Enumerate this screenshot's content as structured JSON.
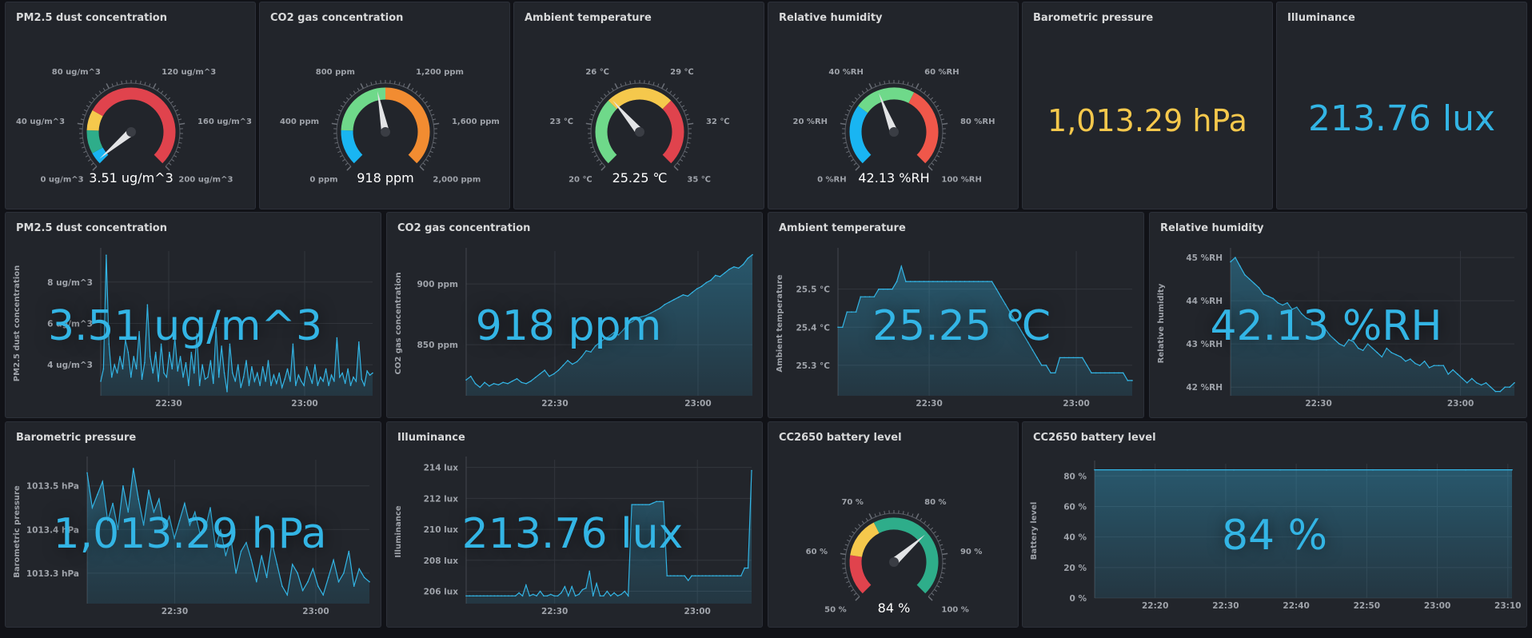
{
  "gauges": [
    {
      "title": "PM2.5 dust concentration",
      "value": 3.51,
      "display": "3.51 ug/m^3",
      "min": 0,
      "max": 200,
      "ticks": [
        {
          "v": 0,
          "label": "0 ug/m^3"
        },
        {
          "v": 40,
          "label": "40 ug/m^3"
        },
        {
          "v": 80,
          "label": "80 ug/m^3"
        },
        {
          "v": 120,
          "label": "120 ug/m^3"
        },
        {
          "v": 160,
          "label": "160 ug/m^3"
        },
        {
          "v": 200,
          "label": "200 ug/m^3"
        }
      ],
      "bands": [
        {
          "from": 0,
          "to": 12,
          "color": "#19b5f2"
        },
        {
          "from": 12,
          "to": 35,
          "color": "#2ead8a"
        },
        {
          "from": 35,
          "to": 55,
          "color": "#f5c84c"
        },
        {
          "from": 55,
          "to": 200,
          "color": "#e0434d"
        }
      ]
    },
    {
      "title": "CO2 gas concentration",
      "value": 918,
      "display": "918 ppm",
      "min": 0,
      "max": 2000,
      "ticks": [
        {
          "v": 0,
          "label": "0 ppm"
        },
        {
          "v": 400,
          "label": "400 ppm"
        },
        {
          "v": 800,
          "label": "800 ppm"
        },
        {
          "v": 1200,
          "label": "1,200 ppm"
        },
        {
          "v": 1600,
          "label": "1,600 ppm"
        },
        {
          "v": 2000,
          "label": "2,000 ppm"
        }
      ],
      "bands": [
        {
          "from": 0,
          "to": 350,
          "color": "#19b5f2"
        },
        {
          "from": 350,
          "to": 1000,
          "color": "#6fd98a"
        },
        {
          "from": 1000,
          "to": 2000,
          "color": "#f28c31"
        }
      ]
    },
    {
      "title": "Ambient temperature",
      "value": 25.25,
      "display": "25.25 ℃",
      "min": 20,
      "max": 35,
      "ticks": [
        {
          "v": 20,
          "label": "20 ℃"
        },
        {
          "v": 23,
          "label": "23 ℃"
        },
        {
          "v": 26,
          "label": "26 ℃"
        },
        {
          "v": 29,
          "label": "29 ℃"
        },
        {
          "v": 32,
          "label": "32 ℃"
        },
        {
          "v": 35,
          "label": "35 ℃"
        }
      ],
      "bands": [
        {
          "from": 20,
          "to": 25,
          "color": "#6fd98a"
        },
        {
          "from": 25,
          "to": 30,
          "color": "#f5c84c"
        },
        {
          "from": 30,
          "to": 35,
          "color": "#e0434d"
        }
      ]
    },
    {
      "title": "Relative humidity",
      "value": 42.13,
      "display": "42.13 %RH",
      "min": 0,
      "max": 100,
      "ticks": [
        {
          "v": 0,
          "label": "0 %RH"
        },
        {
          "v": 20,
          "label": "20 %RH"
        },
        {
          "v": 40,
          "label": "40 %RH"
        },
        {
          "v": 60,
          "label": "60 %RH"
        },
        {
          "v": 80,
          "label": "80 %RH"
        },
        {
          "v": 100,
          "label": "100 %RH"
        }
      ],
      "bands": [
        {
          "from": 0,
          "to": 30,
          "color": "#19b5f2"
        },
        {
          "from": 30,
          "to": 60,
          "color": "#6fd98a"
        },
        {
          "from": 60,
          "to": 100,
          "color": "#f0574a"
        }
      ]
    },
    {
      "title": "CC2650 battery level",
      "value": 84,
      "display": "84 %",
      "min": 50,
      "max": 100,
      "ticks": [
        {
          "v": 50,
          "label": "50 %"
        },
        {
          "v": 60,
          "label": "60 %"
        },
        {
          "v": 70,
          "label": "70 %"
        },
        {
          "v": 80,
          "label": "80 %"
        },
        {
          "v": 90,
          "label": "90 %"
        },
        {
          "v": 100,
          "label": "100 %"
        }
      ],
      "bands": [
        {
          "from": 50,
          "to": 60,
          "color": "#e0434d"
        },
        {
          "from": 60,
          "to": 70,
          "color": "#f5c84c"
        },
        {
          "from": 70,
          "to": 100,
          "color": "#2ead8a"
        }
      ]
    }
  ],
  "stats": [
    {
      "title": "Barometric pressure",
      "display": "1,013.29 hPa",
      "color": "#f5c84c"
    },
    {
      "title": "Illuminance",
      "display": "213.76 lux",
      "color": "#33b5e5"
    }
  ],
  "timeseries": [
    {
      "title": "PM2.5 dust concentration",
      "ylabel": "PM2.5 dust concentration",
      "big": "3.51 ug/m^3",
      "ymin": 2.5,
      "ymax": 9.5,
      "yticks": [
        {
          "v": 4,
          "label": "4 ug/m^3"
        },
        {
          "v": 6,
          "label": "6 ug/m^3"
        },
        {
          "v": 8,
          "label": "8 ug/m^3"
        }
      ],
      "xmin": 0,
      "xmax": 100,
      "xticks": [
        {
          "v": 25,
          "label": "22:30"
        },
        {
          "v": 75,
          "label": "23:00"
        }
      ],
      "values": [
        3.2,
        3.8,
        9.3,
        5.0,
        3.4,
        4.0,
        3.6,
        4.4,
        3.8,
        5.2,
        4.6,
        3.4,
        4.4,
        3.8,
        5.6,
        3.3,
        4.1,
        6.9,
        4.4,
        3.6,
        4.6,
        3.2,
        5.0,
        3.6,
        3.4,
        4.6,
        3.8,
        5.3,
        3.7,
        4.4,
        3.4,
        4.1,
        3.0,
        4.6,
        3.6,
        5.5,
        3.0,
        4.0,
        3.3,
        3.4,
        4.2,
        3.1,
        5.8,
        3.4,
        4.9,
        3.6,
        2.7,
        5.0,
        3.6,
        3.2,
        4.0,
        2.9,
        3.4,
        4.2,
        3.0,
        3.9,
        3.2,
        3.6,
        3.0,
        3.9,
        3.2,
        4.2,
        3.0,
        3.5,
        3.1,
        3.6,
        2.9,
        3.3,
        3.8,
        3.2,
        5.0,
        3.0,
        3.5,
        3.2,
        3.0,
        3.9,
        3.5,
        3.1,
        4.0,
        3.0,
        3.4,
        3.2,
        3.8,
        3.0,
        3.5,
        3.2,
        5.3,
        3.4,
        3.6,
        3.1,
        3.8,
        3.0,
        3.4,
        3.2,
        5.1,
        3.3,
        3.0,
        3.7,
        3.5,
        3.6
      ]
    },
    {
      "title": "CO2 gas concentration",
      "ylabel": "CO2 gas concentration",
      "big": "918 ppm",
      "ymin": 808,
      "ymax": 927,
      "yticks": [
        {
          "v": 850,
          "label": "850 ppm"
        },
        {
          "v": 900,
          "label": "900 ppm"
        }
      ],
      "xmin": 0,
      "xmax": 100,
      "xticks": [
        {
          "v": 31,
          "label": "22:30"
        },
        {
          "v": 81,
          "label": "23:00"
        }
      ],
      "values": [
        821,
        824,
        818,
        815,
        819,
        816,
        818,
        817,
        819,
        818,
        820,
        822,
        819,
        818,
        820,
        823,
        826,
        829,
        824,
        826,
        829,
        833,
        837,
        834,
        836,
        840,
        845,
        844,
        849,
        852,
        855,
        857,
        860,
        858,
        862,
        867,
        869,
        872,
        873,
        874,
        876,
        878,
        880,
        883,
        885,
        887,
        889,
        891,
        890,
        893,
        896,
        898,
        901,
        903,
        907,
        906,
        909,
        912,
        914,
        913,
        916,
        921,
        924
      ]
    },
    {
      "title": "Ambient temperature",
      "ylabel": "Ambient temperature",
      "big": "25.25 ℃",
      "ymin": 25.22,
      "ymax": 25.6,
      "yticks": [
        {
          "v": 25.3,
          "label": "25.3 °C"
        },
        {
          "v": 25.4,
          "label": "25.4 °C"
        },
        {
          "v": 25.5,
          "label": "25.5 °C"
        }
      ],
      "xmin": 0,
      "xmax": 100,
      "xticks": [
        {
          "v": 31,
          "label": "22:30"
        },
        {
          "v": 81,
          "label": "23:00"
        }
      ],
      "values": [
        25.4,
        25.4,
        25.44,
        25.44,
        25.44,
        25.48,
        25.48,
        25.48,
        25.48,
        25.5,
        25.5,
        25.5,
        25.5,
        25.52,
        25.56,
        25.52,
        25.52,
        25.52,
        25.52,
        25.52,
        25.52,
        25.52,
        25.52,
        25.52,
        25.52,
        25.52,
        25.52,
        25.52,
        25.52,
        25.52,
        25.52,
        25.52,
        25.52,
        25.52,
        25.52,
        25.5,
        25.48,
        25.46,
        25.44,
        25.42,
        25.4,
        25.38,
        25.36,
        25.34,
        25.32,
        25.3,
        25.3,
        25.28,
        25.28,
        25.32,
        25.32,
        25.32,
        25.32,
        25.32,
        25.32,
        25.3,
        25.28,
        25.28,
        25.28,
        25.28,
        25.28,
        25.28,
        25.28,
        25.28,
        25.26,
        25.26
      ]
    },
    {
      "title": "Relative humidity",
      "ylabel": "Relative humidity",
      "big": "42.13 %RH",
      "ymin": 41.8,
      "ymax": 45.15,
      "yticks": [
        {
          "v": 42,
          "label": "42 %RH"
        },
        {
          "v": 43,
          "label": "43 %RH"
        },
        {
          "v": 44,
          "label": "44 %RH"
        },
        {
          "v": 45,
          "label": "45 %RH"
        }
      ],
      "xmin": 0,
      "xmax": 100,
      "xticks": [
        {
          "v": 31,
          "label": "22:30"
        },
        {
          "v": 81,
          "label": "23:00"
        }
      ],
      "values": [
        44.9,
        45.0,
        44.8,
        44.6,
        44.5,
        44.4,
        44.3,
        44.15,
        44.1,
        44.05,
        43.95,
        43.9,
        43.95,
        43.8,
        43.85,
        43.7,
        43.6,
        43.55,
        43.45,
        43.4,
        43.35,
        43.2,
        43.1,
        43.0,
        42.95,
        43.1,
        43.05,
        42.9,
        42.85,
        43.0,
        42.9,
        42.8,
        42.7,
        42.9,
        42.8,
        42.75,
        42.7,
        42.6,
        42.65,
        42.55,
        42.5,
        42.6,
        42.45,
        42.5,
        42.5,
        42.5,
        42.3,
        42.4,
        42.3,
        42.2,
        42.1,
        42.2,
        42.1,
        42.05,
        42.1,
        42.0,
        41.9,
        41.9,
        42.0,
        42.0,
        42.1
      ]
    },
    {
      "title": "Barometric pressure",
      "ylabel": "Barometric pressure",
      "big": "1,013.29 hPa",
      "ymin": 1013.23,
      "ymax": 1013.56,
      "yticks": [
        {
          "v": 1013.3,
          "label": "1013.3 hPa"
        },
        {
          "v": 1013.4,
          "label": "1013.4 hPa"
        },
        {
          "v": 1013.5,
          "label": "1013.5 hPa"
        }
      ],
      "xmin": 0,
      "xmax": 100,
      "xticks": [
        {
          "v": 31,
          "label": "22:30"
        },
        {
          "v": 81,
          "label": "23:00"
        }
      ],
      "values": [
        1013.53,
        1013.45,
        1013.48,
        1013.51,
        1013.42,
        1013.46,
        1013.4,
        1013.5,
        1013.44,
        1013.54,
        1013.47,
        1013.41,
        1013.49,
        1013.44,
        1013.47,
        1013.4,
        1013.43,
        1013.38,
        1013.42,
        1013.46,
        1013.41,
        1013.44,
        1013.39,
        1013.4,
        1013.45,
        1013.36,
        1013.4,
        1013.34,
        1013.38,
        1013.3,
        1013.35,
        1013.37,
        1013.33,
        1013.28,
        1013.34,
        1013.29,
        1013.37,
        1013.32,
        1013.27,
        1013.25,
        1013.32,
        1013.3,
        1013.26,
        1013.28,
        1013.31,
        1013.27,
        1013.25,
        1013.29,
        1013.33,
        1013.28,
        1013.3,
        1013.35,
        1013.27,
        1013.31,
        1013.29,
        1013.28
      ]
    },
    {
      "title": "Illuminance",
      "ylabel": "Illuminance",
      "big": "213.76 lux",
      "ymin": 205.2,
      "ymax": 214.5,
      "yticks": [
        {
          "v": 206,
          "label": "206 lux"
        },
        {
          "v": 208,
          "label": "208 lux"
        },
        {
          "v": 210,
          "label": "210 lux"
        },
        {
          "v": 212,
          "label": "212 lux"
        },
        {
          "v": 214,
          "label": "214 lux"
        }
      ],
      "xmin": 0,
      "xmax": 100,
      "xticks": [
        {
          "v": 31,
          "label": "22:30"
        },
        {
          "v": 81,
          "label": "23:00"
        }
      ],
      "values": [
        205.7,
        205.7,
        205.7,
        205.7,
        205.7,
        205.7,
        205.7,
        205.7,
        205.7,
        205.7,
        205.7,
        205.7,
        205.7,
        205.7,
        205.7,
        205.9,
        205.7,
        206.4,
        205.7,
        205.8,
        205.7,
        206.0,
        205.7,
        205.7,
        205.8,
        205.7,
        205.7,
        205.9,
        206.3,
        205.7,
        206.3,
        205.7,
        205.8,
        206.1,
        206.2,
        207.3,
        205.7,
        206.5,
        205.7,
        205.7,
        206.0,
        205.7,
        205.9,
        205.7,
        205.8,
        206.0,
        205.7,
        211.6,
        211.6,
        211.6,
        211.6,
        211.6,
        211.6,
        211.7,
        211.8,
        211.8,
        211.8,
        207.0,
        207.0,
        207.0,
        207.0,
        207.0,
        207.0,
        206.7,
        207.0,
        207.0,
        207.0,
        207.0,
        207.0,
        207.0,
        207.0,
        207.0,
        207.0,
        207.0,
        207.0,
        207.0,
        207.0,
        207.0,
        207.0,
        207.5,
        207.5,
        213.8
      ]
    },
    {
      "title": "CC2650 battery level",
      "ylabel": "Battery level",
      "big": "84 %",
      "ymin": 0,
      "ymax": 88,
      "yticks": [
        {
          "v": 0,
          "label": "0 %"
        },
        {
          "v": 20,
          "label": "20 %"
        },
        {
          "v": 40,
          "label": "40 %"
        },
        {
          "v": 60,
          "label": "60 %"
        },
        {
          "v": 80,
          "label": "80 %"
        }
      ],
      "xmin": 0,
      "xmax": 100,
      "xticks": [
        {
          "v": 14.5,
          "label": "22:20"
        },
        {
          "v": 31.4,
          "label": "22:30"
        },
        {
          "v": 48.3,
          "label": "22:40"
        },
        {
          "v": 65.2,
          "label": "22:50"
        },
        {
          "v": 82.1,
          "label": "23:00"
        },
        {
          "v": 99,
          "label": "23:10"
        }
      ],
      "values": [
        84,
        84,
        84,
        84,
        84,
        84,
        84,
        84,
        84,
        84
      ]
    }
  ],
  "chart_data": [
    {
      "type": "line",
      "title": "PM2.5 dust concentration",
      "ylabel": "PM2.5 dust concentration",
      "xticks": [
        "22:30",
        "23:00"
      ],
      "last": "3.51 ug/m^3"
    },
    {
      "type": "line",
      "title": "CO2 gas concentration",
      "ylabel": "CO2 gas concentration",
      "xticks": [
        "22:30",
        "23:00"
      ],
      "last": "918 ppm"
    },
    {
      "type": "line",
      "title": "Ambient temperature",
      "ylabel": "Ambient temperature",
      "xticks": [
        "22:30",
        "23:00"
      ],
      "last": "25.25 ℃"
    },
    {
      "type": "line",
      "title": "Relative humidity",
      "ylabel": "Relative humidity",
      "xticks": [
        "22:30",
        "23:00"
      ],
      "last": "42.13 %RH"
    },
    {
      "type": "line",
      "title": "Barometric pressure",
      "ylabel": "Barometric pressure",
      "xticks": [
        "22:30",
        "23:00"
      ],
      "last": "1,013.29 hPa"
    },
    {
      "type": "line",
      "title": "Illuminance",
      "ylabel": "Illuminance",
      "xticks": [
        "22:30",
        "23:00"
      ],
      "last": "213.76 lux"
    },
    {
      "type": "area",
      "title": "CC2650 battery level",
      "ylabel": "Battery level",
      "xticks": [
        "22:20",
        "22:30",
        "22:40",
        "22:50",
        "23:00",
        "23:10"
      ],
      "last": "84 %"
    }
  ]
}
